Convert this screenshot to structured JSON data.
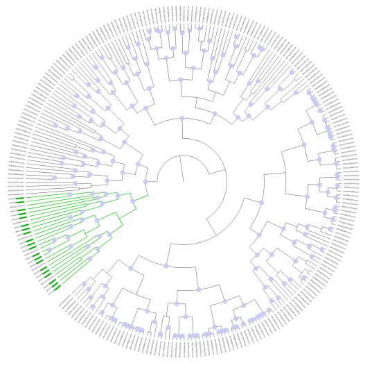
{
  "tree": {
    "label_prefix": "HPV",
    "label_suffix": "Human",
    "leaf_count": 260,
    "highlight_color": "#16c016",
    "branch_color": "#555555",
    "node_color": "#c8cbf0",
    "highlighted_clade_leaves": 26
  }
}
